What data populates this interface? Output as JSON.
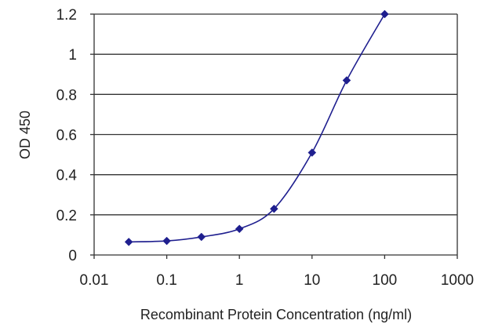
{
  "chart_data": {
    "type": "line",
    "xlabel": "Recombinant Protein Concentration (ng/ml)",
    "ylabel": "OD 450",
    "x_scale": "log",
    "xlim": [
      0.01,
      1000
    ],
    "ylim": [
      0,
      1.2
    ],
    "x_ticks": [
      0.01,
      0.1,
      1,
      10,
      100,
      1000
    ],
    "x_tick_labels": [
      "0.01",
      "0.1",
      "1",
      "10",
      "100",
      "1000"
    ],
    "y_ticks": [
      0,
      0.2,
      0.4,
      0.6,
      0.8,
      1,
      1.2
    ],
    "y_tick_labels": [
      "0",
      "0.2",
      "0.4",
      "0.6",
      "0.8",
      "1",
      "1.2"
    ],
    "grid": "horizontal",
    "colors": {
      "series": "#1f1f8f",
      "grid": "#333333",
      "axis": "#333333"
    },
    "series": [
      {
        "x": [
          0.03,
          0.1,
          0.3,
          1,
          3,
          10,
          30,
          100
        ],
        "y": [
          0.065,
          0.07,
          0.09,
          0.13,
          0.23,
          0.51,
          0.87,
          1.2
        ]
      }
    ]
  }
}
